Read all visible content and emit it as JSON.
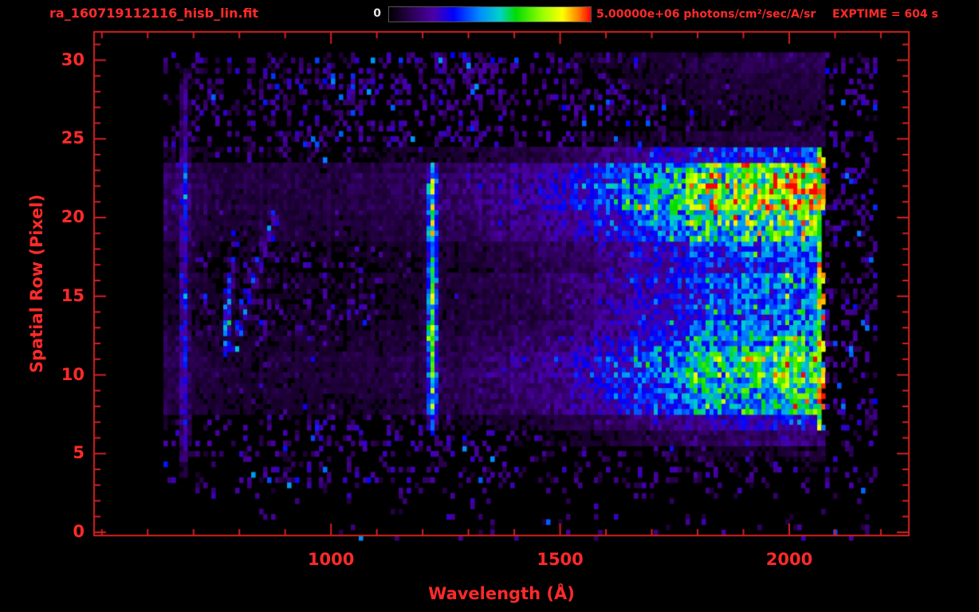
{
  "header": {
    "file_name": "ra_160719112116_hisb_lin.fit",
    "exptime": "EXPTIME = 604 s",
    "colorbar": {
      "min_label": "0",
      "max_label": "5.00000e+06 photons/cm²/sec/A/sr"
    }
  },
  "colors": {
    "background": "#000000",
    "accent_red": "#ff2a2a",
    "frame_red": "#d42020",
    "colorbar_min_label": "#e6e6e6"
  },
  "chart_data": {
    "type": "heatmap",
    "title": "ra_160719112116_hisb_lin.fit",
    "xlabel": "Wavelength (Å)",
    "ylabel": "Spatial Row (Pixel)",
    "xlim": [
      483,
      2261
    ],
    "ylim": [
      -0.2,
      31.8
    ],
    "xticks": [
      1000,
      1500,
      2000
    ],
    "xtick_labels": [
      "1000",
      "1500",
      "2000"
    ],
    "x_minor_tick_step": 100,
    "yticks": [
      0,
      5,
      10,
      15,
      20,
      25,
      30
    ],
    "ytick_labels": [
      "0",
      "5",
      "10",
      "15",
      "20",
      "25",
      "30"
    ],
    "y_minor_tick_step": 1,
    "colorbar": {
      "min": 0,
      "max": 5000000,
      "max_text": "5.00000e+06",
      "units": "photons/cm²/sec/A/sr"
    },
    "exposure_time_s": 604,
    "data_extent": {
      "wavelength_min": 630,
      "wavelength_max": 2195,
      "row_min": 0,
      "row_max": 30
    },
    "signal_cutoff_wavelength": 2078,
    "row_profile": [
      0.01,
      0.02,
      0.03,
      0.03,
      0.05,
      0.08,
      0.2,
      0.35,
      0.7,
      0.85,
      0.9,
      0.85,
      0.7,
      0.55,
      0.5,
      0.5,
      0.55,
      0.5,
      0.55,
      0.75,
      0.9,
      1.0,
      1.0,
      0.95,
      0.5,
      0.12,
      0.08,
      0.08,
      0.1,
      0.12,
      0.15
    ],
    "continuum_profile": {
      "wavelengths": [
        630,
        700,
        800,
        900,
        1000,
        1100,
        1200,
        1300,
        1400,
        1500,
        1600,
        1700,
        1800,
        1900,
        2000,
        2056
      ],
      "values": [
        0.1,
        0.07,
        0.06,
        0.06,
        0.06,
        0.07,
        0.08,
        0.1,
        0.13,
        0.17,
        0.24,
        0.34,
        0.44,
        0.52,
        0.56,
        0.58
      ]
    },
    "features": [
      {
        "name": "emission-line-1216",
        "kind": "vertical-line",
        "wavelength": 1216,
        "sigma_A": 7,
        "rows": [
          6,
          24
        ],
        "amplitude": 0.62,
        "note": "bright narrow emission line spanning the illuminated rows"
      },
      {
        "name": "left-edge-column",
        "kind": "vertical-line",
        "wavelength": 676,
        "sigma_A": 6,
        "rows": [
          3,
          30
        ],
        "amplitude": 0.25,
        "note": "faint blue column at short-wavelength edge of data"
      },
      {
        "name": "short-wavelength-streak-bright",
        "kind": "curved-streak",
        "lambda0": 768,
        "row_ref": 13,
        "slope": 0,
        "curvature": 0.9,
        "rows": [
          12.2,
          17.5
        ],
        "sigma_A": 5,
        "amplitude": 0.55
      },
      {
        "name": "short-wavelength-streak-faint",
        "kind": "curved-streak",
        "lambda0": 790,
        "row_ref": 12.5,
        "slope": 11,
        "curvature": 0,
        "rows": [
          12.5,
          20
        ],
        "sigma_A": 5,
        "amplitude": 0.4
      },
      {
        "name": "detector-edge-saturation",
        "kind": "saturation-column",
        "wavelength_range": [
          2056,
          2078
        ],
        "rows": [
          6,
          24
        ],
        "note": "orange/red saturated pixels at long-wavelength cutoff"
      }
    ],
    "colormap": [
      {
        "t": 0.0,
        "color": "#000000"
      },
      {
        "t": 0.1,
        "color": "#28004a"
      },
      {
        "t": 0.22,
        "color": "#4b00a8"
      },
      {
        "t": 0.32,
        "color": "#0000ff"
      },
      {
        "t": 0.45,
        "color": "#008cff"
      },
      {
        "t": 0.55,
        "color": "#00d2c8"
      },
      {
        "t": 0.63,
        "color": "#00dc00"
      },
      {
        "t": 0.76,
        "color": "#96ff00"
      },
      {
        "t": 0.86,
        "color": "#ffff00"
      },
      {
        "t": 0.94,
        "color": "#ff7d00"
      },
      {
        "t": 1.0,
        "color": "#ff0000"
      }
    ]
  }
}
